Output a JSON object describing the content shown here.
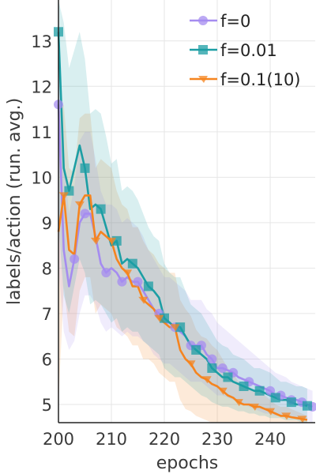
{
  "chart_data": {
    "type": "line",
    "title": "",
    "xlabel": "epochs",
    "ylabel": "labels/action (run. avg.)",
    "xlim": [
      200,
      248.5
    ],
    "ylim": [
      4.6,
      13.9
    ],
    "xticks": [
      200,
      210,
      220,
      230,
      240
    ],
    "yticks": [
      5,
      6,
      7,
      8,
      9,
      10,
      11,
      12,
      13
    ],
    "xtick_labels": [
      "200",
      "210",
      "220",
      "230",
      "240"
    ],
    "ytick_labels": [
      "5",
      "6",
      "7",
      "8",
      "9",
      "10",
      "11",
      "12",
      "13"
    ],
    "grid": true,
    "legend_position": "top-right",
    "series": [
      {
        "name": "f=0",
        "color": "#a58cf0",
        "marker": "circle",
        "x": [
          200,
          201,
          202,
          203,
          204,
          205,
          206,
          207,
          208,
          209,
          210,
          211,
          212,
          213,
          214,
          215,
          216,
          217,
          218,
          219,
          220,
          221,
          222,
          223,
          224,
          225,
          226,
          227,
          228,
          229,
          230,
          231,
          232,
          233,
          234,
          235,
          236,
          237,
          238,
          239,
          240,
          241,
          242,
          243,
          244,
          245,
          246,
          247,
          248
        ],
        "y": [
          11.6,
          8.4,
          7.6,
          8.2,
          9.0,
          9.2,
          9.2,
          8.7,
          8.1,
          7.9,
          8.0,
          7.9,
          7.7,
          7.8,
          7.7,
          7.7,
          7.5,
          7.3,
          7.1,
          7.0,
          6.8,
          6.8,
          6.7,
          6.6,
          6.5,
          6.3,
          6.3,
          6.3,
          6.1,
          6.0,
          5.8,
          5.8,
          5.75,
          5.7,
          5.6,
          5.55,
          5.5,
          5.45,
          5.4,
          5.35,
          5.3,
          5.2,
          5.2,
          5.15,
          5.1,
          5.1,
          5.05,
          5.0,
          4.95
        ],
        "band_lower": [
          8.0,
          6.6,
          6.2,
          6.4,
          7.0,
          7.4,
          7.4,
          7.2,
          6.8,
          6.6,
          6.7,
          6.6,
          6.5,
          6.6,
          6.5,
          6.5,
          6.4,
          6.3,
          6.1,
          6.0,
          5.9,
          5.9,
          5.8,
          5.7,
          5.6,
          5.5,
          5.5,
          5.5,
          5.4,
          5.3,
          5.2,
          5.2,
          5.15,
          5.1,
          5.05,
          5.0,
          4.95,
          4.9,
          4.85,
          4.8,
          4.8,
          4.75,
          4.75,
          4.7,
          4.7,
          4.7,
          4.65,
          4.65,
          4.6
        ],
        "band_upper": [
          13.6,
          10.4,
          9.2,
          9.8,
          10.8,
          11.0,
          11.0,
          10.4,
          9.7,
          9.4,
          9.4,
          9.3,
          9.0,
          9.1,
          9.0,
          8.9,
          8.7,
          8.4,
          8.2,
          8.0,
          7.8,
          7.8,
          7.7,
          7.6,
          7.5,
          7.3,
          7.3,
          7.3,
          7.1,
          7.0,
          6.8,
          6.7,
          6.6,
          6.5,
          6.4,
          6.3,
          6.2,
          6.1,
          6.0,
          5.9,
          5.8,
          5.7,
          5.65,
          5.6,
          5.5,
          5.45,
          5.4,
          5.35,
          5.3
        ],
        "marker_x": [
          200,
          203,
          205,
          209,
          212,
          215,
          219,
          222,
          225,
          227,
          229,
          231,
          233,
          236,
          240,
          242,
          244,
          246,
          248
        ]
      },
      {
        "name": "f=0.01",
        "color": "#1c9ea4",
        "marker": "square",
        "x": [
          200,
          201,
          202,
          203,
          204,
          205,
          206,
          207,
          208,
          209,
          210,
          211,
          212,
          213,
          214,
          215,
          216,
          217,
          218,
          219,
          220,
          221,
          222,
          223,
          224,
          225,
          226,
          227,
          228,
          229,
          230,
          231,
          232,
          233,
          234,
          235,
          236,
          237,
          238,
          239,
          240,
          241,
          242,
          243,
          244,
          245,
          246,
          247
        ],
        "y": [
          13.2,
          10.2,
          9.7,
          10.2,
          10.7,
          10.2,
          9.3,
          9.4,
          9.3,
          8.9,
          8.5,
          8.6,
          8.1,
          8.2,
          8.1,
          8.0,
          7.8,
          7.6,
          7.5,
          7.35,
          6.9,
          6.8,
          6.7,
          6.7,
          6.5,
          6.3,
          6.2,
          6.1,
          6.0,
          5.8,
          5.7,
          5.6,
          5.6,
          5.5,
          5.45,
          5.4,
          5.35,
          5.3,
          5.3,
          5.25,
          5.2,
          5.15,
          5.1,
          5.1,
          5.05,
          5.0,
          5.0,
          4.97
        ],
        "band_lower": [
          9.0,
          7.4,
          7.0,
          7.6,
          8.2,
          7.9,
          7.2,
          7.3,
          7.2,
          7.0,
          6.8,
          6.9,
          6.6,
          6.7,
          6.6,
          6.6,
          6.4,
          6.3,
          6.2,
          6.1,
          5.8,
          5.7,
          5.6,
          5.6,
          5.5,
          5.4,
          5.3,
          5.2,
          5.15,
          5.05,
          5.0,
          4.95,
          4.95,
          4.9,
          4.85,
          4.85,
          4.8,
          4.8,
          4.75,
          4.75,
          4.7,
          4.7,
          4.7,
          4.65,
          4.65,
          4.65,
          4.6,
          4.6
        ],
        "band_upper": [
          13.9,
          13.4,
          12.4,
          12.8,
          13.2,
          12.6,
          11.4,
          11.5,
          11.4,
          10.9,
          10.3,
          10.4,
          9.7,
          9.8,
          9.7,
          9.5,
          9.2,
          8.9,
          8.7,
          8.6,
          8.1,
          7.9,
          7.8,
          7.8,
          7.5,
          7.2,
          7.1,
          7.0,
          6.8,
          6.6,
          6.4,
          6.3,
          6.25,
          6.1,
          6.05,
          6.0,
          5.9,
          5.8,
          5.8,
          5.75,
          5.7,
          5.6,
          5.5,
          5.5,
          5.45,
          5.4,
          5.4,
          5.35
        ],
        "marker_x": [
          200,
          202,
          205,
          208,
          211,
          214,
          217,
          220,
          223,
          226,
          229,
          232,
          235,
          238,
          241,
          244,
          247
        ]
      },
      {
        "name": "f=0.1(10)",
        "color": "#f5841f",
        "marker": "triangle",
        "x": [
          200,
          201,
          202,
          203,
          204,
          205,
          206,
          207,
          208,
          209,
          210,
          211,
          212,
          213,
          214,
          215,
          216,
          217,
          218,
          219,
          220,
          221,
          222,
          223,
          224,
          225,
          226,
          227,
          228,
          229,
          230,
          231,
          232,
          233,
          234,
          235,
          236,
          237,
          238,
          239,
          240,
          241,
          242,
          243,
          244,
          245,
          246,
          247
        ],
        "y": [
          8.8,
          9.6,
          8.4,
          8.3,
          9.4,
          9.6,
          9.6,
          8.6,
          8.8,
          8.7,
          8.6,
          8.2,
          8.0,
          7.9,
          7.6,
          7.6,
          7.3,
          7.2,
          7.1,
          6.9,
          6.8,
          6.7,
          6.7,
          6.2,
          6.0,
          5.9,
          5.7,
          5.6,
          5.55,
          5.45,
          5.4,
          5.3,
          5.2,
          5.15,
          5.05,
          5.0,
          5.0,
          4.95,
          4.95,
          4.9,
          4.85,
          4.8,
          4.75,
          4.75,
          4.72,
          4.7,
          4.68,
          4.66
        ],
        "band_lower": [
          5.0,
          7.6,
          6.6,
          6.5,
          7.5,
          7.8,
          7.8,
          7.0,
          7.2,
          7.1,
          7.0,
          6.7,
          6.6,
          6.5,
          6.3,
          6.3,
          6.0,
          6.0,
          5.9,
          5.7,
          5.6,
          5.5,
          5.5,
          5.1,
          4.9,
          4.85,
          4.75,
          4.7,
          4.65,
          4.6,
          4.6,
          4.6,
          4.6,
          4.6,
          4.6,
          4.6,
          4.6,
          4.6,
          4.6,
          4.6,
          4.6,
          4.6,
          4.6,
          4.6,
          4.6,
          4.6,
          4.6,
          4.6
        ],
        "band_upper": [
          11.4,
          11.6,
          10.2,
          10.1,
          11.3,
          11.4,
          11.4,
          10.2,
          10.4,
          10.3,
          10.2,
          9.7,
          9.4,
          9.3,
          8.9,
          8.9,
          8.6,
          8.4,
          8.3,
          8.1,
          8.0,
          7.9,
          7.9,
          7.3,
          7.1,
          6.95,
          6.65,
          6.5,
          6.45,
          6.3,
          6.2,
          6.0,
          5.8,
          5.7,
          5.5,
          5.4,
          5.4,
          5.3,
          5.3,
          5.2,
          5.1,
          5.0,
          4.95,
          4.95,
          4.9,
          4.85,
          4.8,
          4.75
        ],
        "marker_x": [
          201,
          204,
          207,
          210,
          213,
          216,
          219,
          222,
          225,
          228,
          231,
          234,
          237,
          240,
          243,
          246
        ]
      }
    ]
  }
}
